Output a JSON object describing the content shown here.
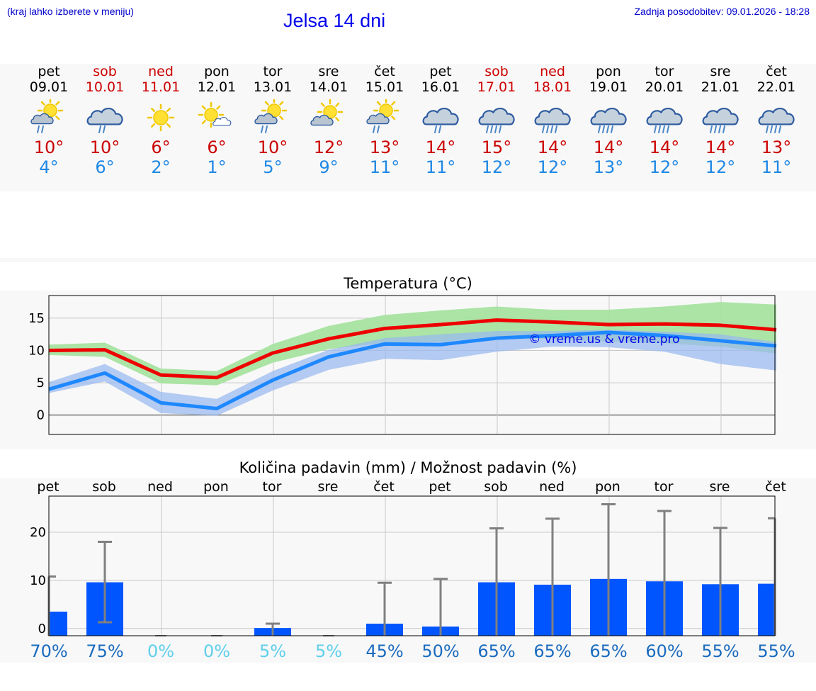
{
  "header": {
    "hint": "(kraj lahko izberete v meniju)",
    "title": "Jelsa 14 dni",
    "updated": "Zadnja posodobitev: 09.01.2026 - 18:28"
  },
  "forecast": [
    {
      "day": "pet",
      "date": "09.01",
      "icon": "sun-cloud-rain-icon",
      "tmax": "10°",
      "tmin": "4°",
      "weekend": false
    },
    {
      "day": "sob",
      "date": "10.01",
      "icon": "cloud-rain-icon",
      "tmax": "10°",
      "tmin": "6°",
      "weekend": true
    },
    {
      "day": "ned",
      "date": "11.01",
      "icon": "sun-icon",
      "tmax": "6°",
      "tmin": "2°",
      "weekend": true
    },
    {
      "day": "pon",
      "date": "12.01",
      "icon": "sun-small-cloud-icon",
      "tmax": "6°",
      "tmin": "1°",
      "weekend": false
    },
    {
      "day": "tor",
      "date": "13.01",
      "icon": "sun-cloud-rain-icon",
      "tmax": "10°",
      "tmin": "5°",
      "weekend": false
    },
    {
      "day": "sre",
      "date": "14.01",
      "icon": "sun-cloud-icon",
      "tmax": "12°",
      "tmin": "9°",
      "weekend": false
    },
    {
      "day": "čet",
      "date": "15.01",
      "icon": "sun-cloud-rain-icon",
      "tmax": "13°",
      "tmin": "11°",
      "weekend": false
    },
    {
      "day": "pet",
      "date": "16.01",
      "icon": "cloud-rain-icon",
      "tmax": "14°",
      "tmin": "11°",
      "weekend": false
    },
    {
      "day": "sob",
      "date": "17.01",
      "icon": "cloud-heavy-rain-icon",
      "tmax": "15°",
      "tmin": "12°",
      "weekend": true
    },
    {
      "day": "ned",
      "date": "18.01",
      "icon": "cloud-heavy-rain-icon",
      "tmax": "14°",
      "tmin": "12°",
      "weekend": true
    },
    {
      "day": "pon",
      "date": "19.01",
      "icon": "cloud-heavy-rain-icon",
      "tmax": "14°",
      "tmin": "13°",
      "weekend": false
    },
    {
      "day": "tor",
      "date": "20.01",
      "icon": "cloud-heavy-rain-icon",
      "tmax": "14°",
      "tmin": "12°",
      "weekend": false
    },
    {
      "day": "sre",
      "date": "21.01",
      "icon": "cloud-heavy-rain-icon",
      "tmax": "14°",
      "tmin": "12°",
      "weekend": false
    },
    {
      "day": "čet",
      "date": "22.01",
      "icon": "cloud-heavy-rain-icon",
      "tmax": "13°",
      "tmin": "11°",
      "weekend": false
    }
  ],
  "colors": {
    "tmax_line": "#ee0000",
    "tmax_band": "#a6e3a0",
    "tmin_line": "#1e88ff",
    "tmin_band": "#98b8f0",
    "bar": "#0055ff",
    "errbar": "#808080",
    "grid": "#c8c8c8",
    "pct_high": "#1a6bbf",
    "pct_low": "#5fcfea"
  },
  "chart_data": [
    {
      "type": "line",
      "title": "Temperatura (°C)",
      "watermark": "© vreme.us & vreme.pro",
      "x": [
        0,
        1,
        2,
        3,
        4,
        5,
        6,
        7,
        8,
        9,
        10,
        11,
        12,
        13
      ],
      "ylim": [
        -3,
        18.5
      ],
      "yticks": [
        0,
        5,
        10,
        15
      ],
      "series": [
        {
          "name": "max",
          "values": [
            10,
            10.1,
            6.2,
            5.8,
            9.6,
            11.8,
            13.4,
            14,
            14.7,
            14.4,
            14,
            14.1,
            13.9,
            13.2
          ],
          "band_low": [
            9.3,
            9,
            4.9,
            4.6,
            8.1,
            10.2,
            11.2,
            11.3,
            12.2,
            11.7,
            11.4,
            11.1,
            10.6,
            9.5
          ],
          "band_high": [
            10.9,
            11.2,
            7.2,
            6.8,
            11,
            13.8,
            15.5,
            16.2,
            16.8,
            16.3,
            16.3,
            16.8,
            17.5,
            17.1
          ]
        },
        {
          "name": "min",
          "values": [
            4,
            6.5,
            1.9,
            1,
            5.4,
            9,
            11,
            10.9,
            11.9,
            12.3,
            12.8,
            12.3,
            11.5,
            10.7
          ],
          "band_low": [
            3.4,
            5.2,
            0.3,
            -0.1,
            3.8,
            7,
            8.7,
            8.5,
            9.8,
            10.6,
            10.5,
            9.8,
            7.9,
            6.9
          ],
          "band_high": [
            5.1,
            7.9,
            3.6,
            2.5,
            6.8,
            10.1,
            11.9,
            12.5,
            13,
            13,
            13.2,
            12.9,
            12.5,
            11.3
          ]
        }
      ]
    },
    {
      "type": "bar",
      "title": "Količina padavin (mm) / Možnost padavin (%)",
      "categories": [
        "pet",
        "sob",
        "ned",
        "pon",
        "tor",
        "sre",
        "čet",
        "pet",
        "sob",
        "ned",
        "pon",
        "tor",
        "sre",
        "čet"
      ],
      "values": [
        3.5,
        9.6,
        0,
        0,
        0.1,
        0,
        1,
        0.4,
        9.6,
        9.1,
        10.3,
        9.8,
        9.2,
        9.3
      ],
      "err_low": [
        0,
        1.3,
        0,
        0,
        0,
        0,
        0,
        0,
        0,
        0,
        0,
        0,
        0,
        0
      ],
      "err_high": [
        10.8,
        18,
        0,
        0,
        1,
        0,
        9.5,
        10.3,
        20.8,
        22.8,
        25.8,
        24.4,
        20.9,
        22.9
      ],
      "probability": [
        "70%",
        "75%",
        "0%",
        "0%",
        "5%",
        "5%",
        "45%",
        "50%",
        "65%",
        "65%",
        "65%",
        "60%",
        "55%",
        "55%"
      ],
      "ylim": [
        -1.5,
        27.5
      ],
      "yticks": [
        0,
        10,
        20
      ]
    }
  ]
}
